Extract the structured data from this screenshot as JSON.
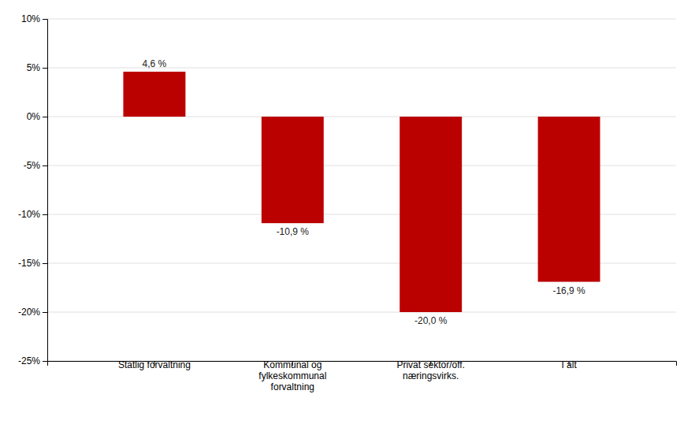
{
  "chart_data": {
    "type": "bar",
    "categories": [
      "Statlig forvaltning",
      "Kommunal og\nfylkeskommunal\nforvaltning",
      "Privat sektor/off.\nnæringsvirks.",
      "I alt"
    ],
    "values": [
      4.6,
      -10.9,
      -20.0,
      -16.9
    ],
    "value_labels": [
      "4,6 %",
      "-10,9 %",
      "-20,0 %",
      "-16,9 %"
    ],
    "data_labels": true,
    "color": "#bb0000",
    "ylim": [
      -25,
      10
    ],
    "yticks": [
      {
        "value": -25,
        "label": "-25%"
      },
      {
        "value": -20,
        "label": "-20%"
      },
      {
        "value": -15,
        "label": "-15%"
      },
      {
        "value": -10,
        "label": "-10%"
      },
      {
        "value": -5,
        "label": "-5%"
      },
      {
        "value": 0,
        "label": "0%"
      },
      {
        "value": 5,
        "label": "5%"
      },
      {
        "value": 10,
        "label": "10%"
      }
    ],
    "grid": true
  }
}
